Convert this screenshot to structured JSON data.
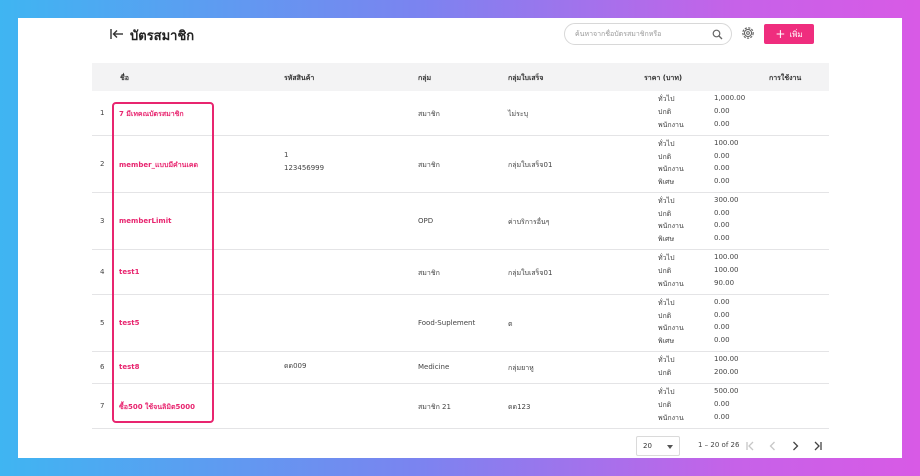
{
  "header": {
    "title": "บัตรสมาชิก",
    "search_placeholder": "ค้นหาจากชื่อบัตรสมาชิกหรือ",
    "add_label": "เพิ่ม"
  },
  "table": {
    "columns": [
      "ชื่อ",
      "รหัสสินค้า",
      "กลุ่ม",
      "กลุ่มใบเสร็จ",
      "ราคา (บาท)",
      "การใช้งาน"
    ],
    "rows": [
      {
        "index": "1",
        "name": "7 มีเทคณบัตรสมาชิก",
        "code": [],
        "group": "สมาชิก",
        "receipt_group": "ไม่ระบุ",
        "prices": [
          [
            "ทั่วไป",
            "1,000.00"
          ],
          [
            "ปกติ",
            "0.00"
          ],
          [
            "พนักงาน",
            "0.00"
          ]
        ]
      },
      {
        "index": "2",
        "name": "member_แบบมีคำนเคด",
        "code": [
          "1",
          "123456999"
        ],
        "group": "สมาชิก",
        "receipt_group": "กลุ่มใบเสร็จ01",
        "prices": [
          [
            "ทั่วไป",
            "100.00"
          ],
          [
            "ปกติ",
            "0.00"
          ],
          [
            "พนักงาน",
            "0.00"
          ],
          [
            "พิเศษ",
            "0.00"
          ]
        ]
      },
      {
        "index": "3",
        "name": "memberLimit",
        "code": [],
        "group": "OPD",
        "receipt_group": "ค่าบริการอื่นๆ",
        "prices": [
          [
            "ทั่วไป",
            "300.00"
          ],
          [
            "ปกติ",
            "0.00"
          ],
          [
            "พนักงาน",
            "0.00"
          ],
          [
            "พิเศษ",
            "0.00"
          ]
        ]
      },
      {
        "index": "4",
        "name": "test1",
        "code": [],
        "group": "สมาชิก",
        "receipt_group": "กลุ่มใบเสร็จ01",
        "prices": [
          [
            "ทั่วไป",
            "100.00"
          ],
          [
            "ปกติ",
            "100.00"
          ],
          [
            "พนักงาน",
            "90.00"
          ]
        ]
      },
      {
        "index": "5",
        "name": "test5",
        "code": [],
        "group": "Food-Suplement",
        "receipt_group": "ต",
        "prices": [
          [
            "ทั่วไป",
            "0.00"
          ],
          [
            "ปกติ",
            "0.00"
          ],
          [
            "พนักงาน",
            "0.00"
          ],
          [
            "พิเศษ",
            "0.00"
          ]
        ]
      },
      {
        "index": "6",
        "name": "test8",
        "code": [
          "ดด009"
        ],
        "group": "Medicine",
        "receipt_group": "กลุ่มยาหู",
        "prices": [
          [
            "ทั่วไป",
            "100.00"
          ],
          [
            "ปกติ",
            "200.00"
          ]
        ]
      },
      {
        "index": "7",
        "name": "ซื้อ500 ใช้จนลิมิต5000",
        "code": [],
        "group": "สมาชิก 21",
        "receipt_group": "ดด123",
        "prices": [
          [
            "ทั่วไป",
            "500.00"
          ],
          [
            "ปกติ",
            "0.00"
          ],
          [
            "พนักงาน",
            "0.00"
          ]
        ]
      }
    ]
  },
  "pagination": {
    "per_page": "20",
    "range_text": "1 – 20 of 26"
  },
  "colors": {
    "accent": "#e8256f",
    "button": "#ef2d7e"
  },
  "icons": [
    "back-icon",
    "search-icon",
    "gear-icon",
    "plus-icon",
    "first-page-icon",
    "prev-page-icon",
    "next-page-icon",
    "last-page-icon"
  ]
}
